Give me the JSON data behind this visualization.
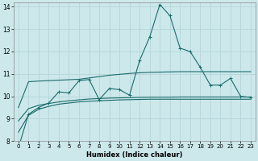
{
  "xlabel": "Humidex (Indice chaleur)",
  "background_color": "#cce8eb",
  "grid_color": "#b8d8dc",
  "line_color": "#1a6b6b",
  "xlim": [
    -0.5,
    23.5
  ],
  "ylim": [
    8,
    14.2
  ],
  "yticks": [
    8,
    9,
    10,
    11,
    12,
    13,
    14
  ],
  "xticks": [
    0,
    1,
    2,
    3,
    4,
    5,
    6,
    7,
    8,
    9,
    10,
    11,
    12,
    13,
    14,
    15,
    16,
    17,
    18,
    19,
    20,
    21,
    22,
    23
  ],
  "series": [
    {
      "x": [
        0,
        1,
        2,
        3,
        4,
        5,
        6,
        7,
        8,
        9,
        10,
        11,
        12,
        13,
        14,
        15,
        16,
        17,
        18,
        19,
        20,
        21,
        22,
        23
      ],
      "y": [
        7.7,
        9.2,
        9.5,
        9.7,
        10.2,
        10.15,
        10.7,
        10.75,
        9.85,
        10.35,
        10.3,
        10.05,
        11.6,
        12.65,
        14.1,
        13.6,
        12.15,
        12.0,
        11.3,
        10.5,
        10.5,
        10.8,
        10.0,
        9.95
      ],
      "marker": "+"
    },
    {
      "x": [
        0,
        1,
        2,
        3,
        4,
        5,
        6,
        7,
        8,
        9,
        10,
        11,
        12,
        13,
        14,
        15,
        16,
        17,
        18,
        19,
        20,
        21,
        22,
        23
      ],
      "y": [
        9.5,
        10.65,
        10.68,
        10.7,
        10.72,
        10.74,
        10.76,
        10.82,
        10.88,
        10.94,
        10.98,
        11.02,
        11.05,
        11.07,
        11.08,
        11.09,
        11.1,
        11.1,
        11.1,
        11.1,
        11.1,
        11.1,
        11.1,
        11.1
      ],
      "marker": null
    },
    {
      "x": [
        0,
        1,
        2,
        3,
        4,
        5,
        6,
        7,
        8,
        9,
        10,
        11,
        12,
        13,
        14,
        15,
        16,
        17,
        18,
        19,
        20,
        21,
        22,
        23
      ],
      "y": [
        8.9,
        9.45,
        9.6,
        9.68,
        9.75,
        9.8,
        9.84,
        9.88,
        9.9,
        9.92,
        9.93,
        9.94,
        9.95,
        9.96,
        9.96,
        9.96,
        9.97,
        9.97,
        9.97,
        9.97,
        9.97,
        9.97,
        9.97,
        9.97
      ],
      "marker": null
    },
    {
      "x": [
        0,
        1,
        2,
        3,
        4,
        5,
        6,
        7,
        8,
        9,
        10,
        11,
        12,
        13,
        14,
        15,
        16,
        17,
        18,
        19,
        20,
        21,
        22,
        23
      ],
      "y": [
        8.4,
        9.15,
        9.42,
        9.55,
        9.65,
        9.7,
        9.75,
        9.78,
        9.8,
        9.82,
        9.84,
        9.85,
        9.86,
        9.87,
        9.87,
        9.87,
        9.87,
        9.87,
        9.87,
        9.87,
        9.87,
        9.87,
        9.87,
        9.87
      ],
      "marker": null
    }
  ]
}
